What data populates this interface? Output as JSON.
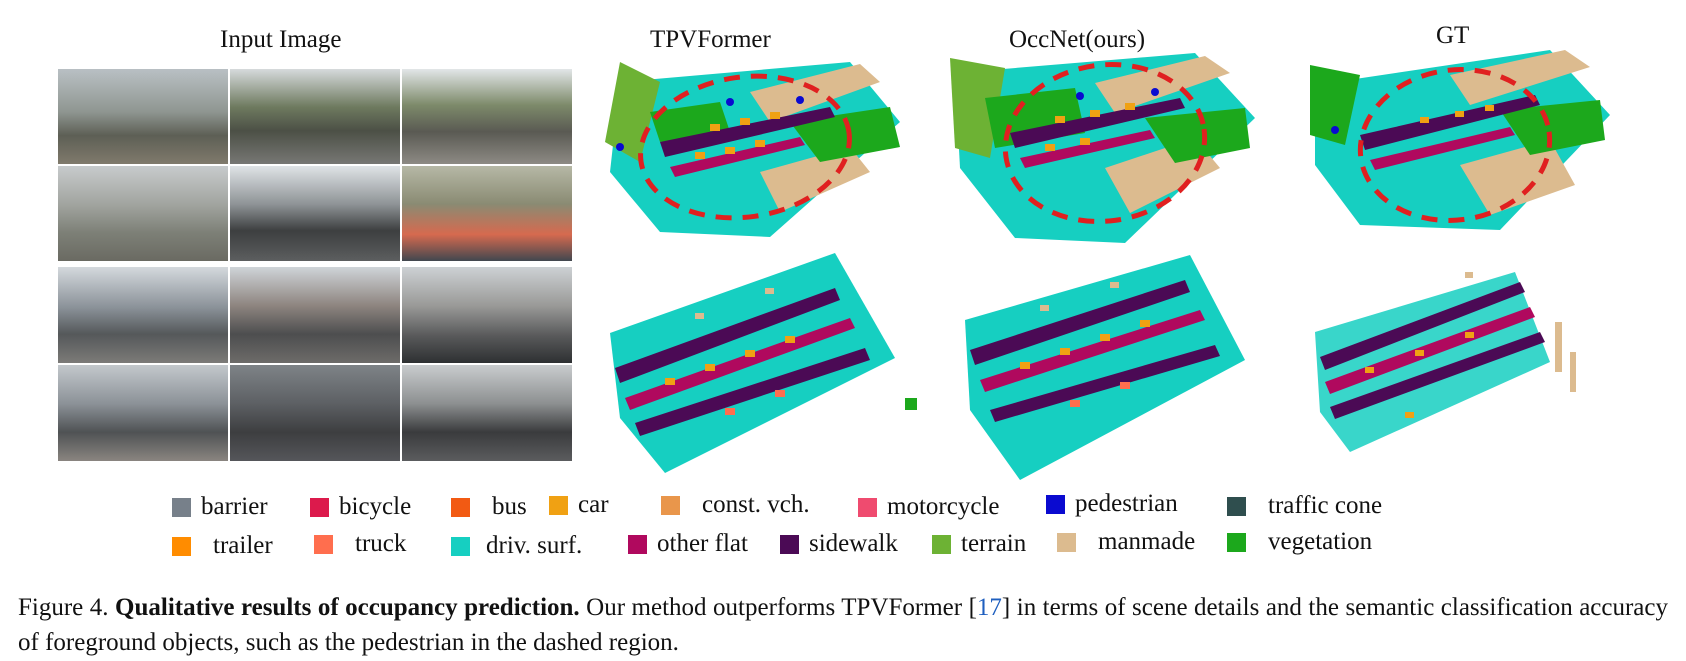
{
  "titles": {
    "input": "Input Image",
    "tpvformer": "TPVFormer",
    "occnet": "OccNet(ours)",
    "gt": "GT"
  },
  "colors": {
    "barrier": "#77808a",
    "bicycle": "#dc1a4c",
    "bus": "#f25a13",
    "car": "#f0a113",
    "const_vch": "#e9964b",
    "motorcycle": "#ef4b6f",
    "pedestrian": "#0a0ad0",
    "traffic_cone": "#2f4e4e",
    "trailer": "#ff8c00",
    "truck": "#ff6e4e",
    "driv_surf": "#16cfc1",
    "other_flat": "#b0095e",
    "sidewalk": "#4b0a55",
    "terrain": "#6db234",
    "manmade": "#dcbb8f",
    "vegetation": "#1ca81c"
  },
  "legend": [
    {
      "label": "barrier",
      "color": "#77808a"
    },
    {
      "label": "bicycle",
      "color": "#dc1a4c"
    },
    {
      "label": "bus",
      "color": "#f25a13"
    },
    {
      "label": "car",
      "color": "#f0a113"
    },
    {
      "label": "const. vch.",
      "color": "#e9964b"
    },
    {
      "label": "motorcycle",
      "color": "#ef4b6f"
    },
    {
      "label": "pedestrian",
      "color": "#0a0ad0"
    },
    {
      "label": "traffic cone",
      "color": "#2f4e4e"
    },
    {
      "label": "trailer",
      "color": "#ff8c00"
    },
    {
      "label": "truck",
      "color": "#ff6e4e"
    },
    {
      "label": "driv. surf.",
      "color": "#16cfc1"
    },
    {
      "label": "other flat",
      "color": "#b0095e"
    },
    {
      "label": "sidewalk",
      "color": "#4b0a55"
    },
    {
      "label": "terrain",
      "color": "#6db234"
    },
    {
      "label": "manmade",
      "color": "#dcbb8f"
    },
    {
      "label": "vegetation",
      "color": "#1ca81c"
    }
  ],
  "caption": {
    "prefix": "Figure 4.",
    "bold": "Qualitative results of occupancy prediction.",
    "text1": "Our method outperforms TPVFormer [",
    "ref": "17",
    "text2": "] in terms of scene details and the semantic classification accuracy of foreground objects, such as the pedestrian in the dashed region."
  }
}
